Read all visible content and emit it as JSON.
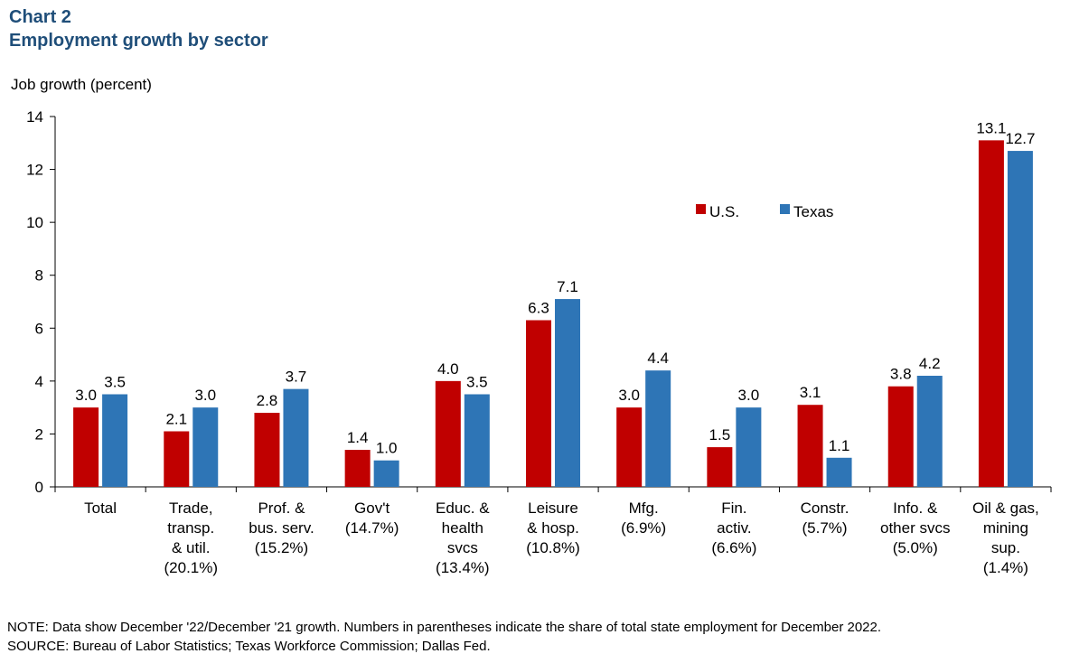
{
  "chart_data": {
    "type": "bar",
    "title_line1": "Chart 2",
    "title_line2": "Employment  growth by sector",
    "ylabel": "Job growth (percent)",
    "xlabel": "",
    "ylim": [
      0,
      14
    ],
    "yticks": [
      0,
      2,
      4,
      6,
      8,
      10,
      12,
      14
    ],
    "grid": false,
    "legend_position": "top-right",
    "categories": [
      [
        "Total"
      ],
      [
        "Trade,",
        "transp.",
        "& util.",
        "(20.1%)"
      ],
      [
        "Prof. &",
        "bus. serv.",
        "(15.2%)"
      ],
      [
        "Gov't",
        "(14.7%)"
      ],
      [
        "Educ. &",
        "health",
        "svcs",
        "(13.4%)"
      ],
      [
        "Leisure",
        "& hosp.",
        "(10.8%)"
      ],
      [
        "Mfg.",
        "(6.9%)"
      ],
      [
        "Fin.",
        "activ.",
        "(6.6%)"
      ],
      [
        "Constr.",
        "(5.7%)"
      ],
      [
        "Info. &",
        "other svcs",
        "(5.0%)"
      ],
      [
        "Oil & gas,",
        "mining",
        "sup.",
        "(1.4%)"
      ]
    ],
    "series": [
      {
        "name": "U.S.",
        "color": "#c00000",
        "values": [
          3.0,
          2.1,
          2.8,
          1.4,
          4.0,
          6.3,
          3.0,
          1.5,
          3.1,
          3.8,
          13.1
        ],
        "labels": [
          "3.0",
          "2.1",
          "2.8",
          "1.4",
          "4.0",
          "6.3",
          "3.0",
          "1.5",
          "3.1",
          "3.8",
          "13.1"
        ]
      },
      {
        "name": "Texas",
        "color": "#2e75b6",
        "values": [
          3.5,
          3.0,
          3.7,
          1.0,
          3.5,
          7.1,
          4.4,
          3.0,
          1.1,
          4.2,
          12.7
        ],
        "labels": [
          "3.5",
          "3.0",
          "3.7",
          "1.0",
          "3.5",
          "7.1",
          "4.4",
          "3.0",
          "1.1",
          "4.2",
          "12.7"
        ]
      }
    ]
  },
  "notes": {
    "note": "NOTE: Data show December '22/December '21 growth. Numbers in parentheses indicate the share of total state employment  for December 2022.",
    "source": "SOURCE: Bureau of Labor Statistics; Texas Workforce Commission;  Dallas Fed."
  }
}
